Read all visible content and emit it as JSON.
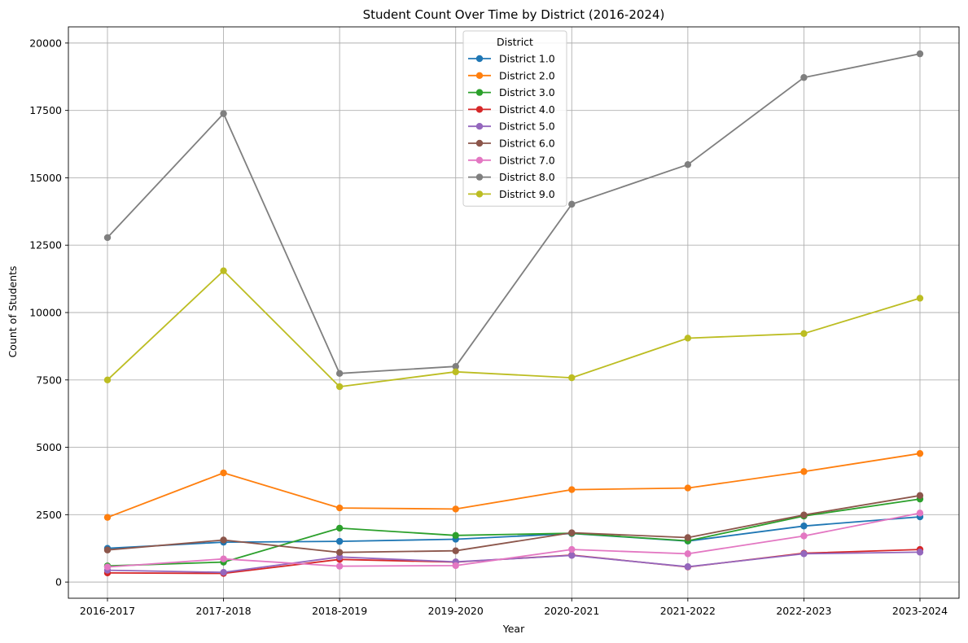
{
  "chart_data": {
    "type": "line",
    "title": "Student Count Over Time by District (2016-2024)",
    "xlabel": "Year",
    "ylabel": "Count of Students",
    "categories": [
      "2016-2017",
      "2017-2018",
      "2018-2019",
      "2019-2020",
      "2020-2021",
      "2021-2022",
      "2022-2023",
      "2023-2024"
    ],
    "ylim": [
      -600,
      20600
    ],
    "yticks": [
      0,
      2500,
      5000,
      7500,
      10000,
      12500,
      15000,
      17500,
      20000
    ],
    "grid": true,
    "legend_title": "District",
    "legend_position": "upper-center",
    "series": [
      {
        "name": "District 1.0",
        "color": "#1f77b4",
        "values": [
          1250,
          1480,
          1510,
          1590,
          1800,
          1520,
          2080,
          2420
        ]
      },
      {
        "name": "District 2.0",
        "color": "#ff7f0e",
        "values": [
          2400,
          4050,
          2750,
          2710,
          3430,
          3490,
          4100,
          4770
        ]
      },
      {
        "name": "District 3.0",
        "color": "#2ca02c",
        "values": [
          600,
          740,
          2000,
          1730,
          1810,
          1530,
          2450,
          3080
        ]
      },
      {
        "name": "District 4.0",
        "color": "#d62728",
        "values": [
          340,
          320,
          840,
          740,
          1000,
          560,
          1070,
          1210
        ]
      },
      {
        "name": "District 5.0",
        "color": "#9467bd",
        "values": [
          440,
          360,
          930,
          750,
          990,
          570,
          1050,
          1110
        ]
      },
      {
        "name": "District 6.0",
        "color": "#8c564b",
        "values": [
          1190,
          1560,
          1100,
          1160,
          1830,
          1650,
          2490,
          3210
        ]
      },
      {
        "name": "District 7.0",
        "color": "#e377c2",
        "values": [
          560,
          860,
          590,
          610,
          1210,
          1050,
          1710,
          2560
        ]
      },
      {
        "name": "District 8.0",
        "color": "#7f7f7f",
        "values": [
          12780,
          17380,
          7740,
          8000,
          14020,
          15490,
          18720,
          19600
        ]
      },
      {
        "name": "District 9.0",
        "color": "#bcbd22",
        "values": [
          7500,
          11550,
          7250,
          7800,
          7580,
          9050,
          9220,
          10530
        ]
      }
    ]
  }
}
